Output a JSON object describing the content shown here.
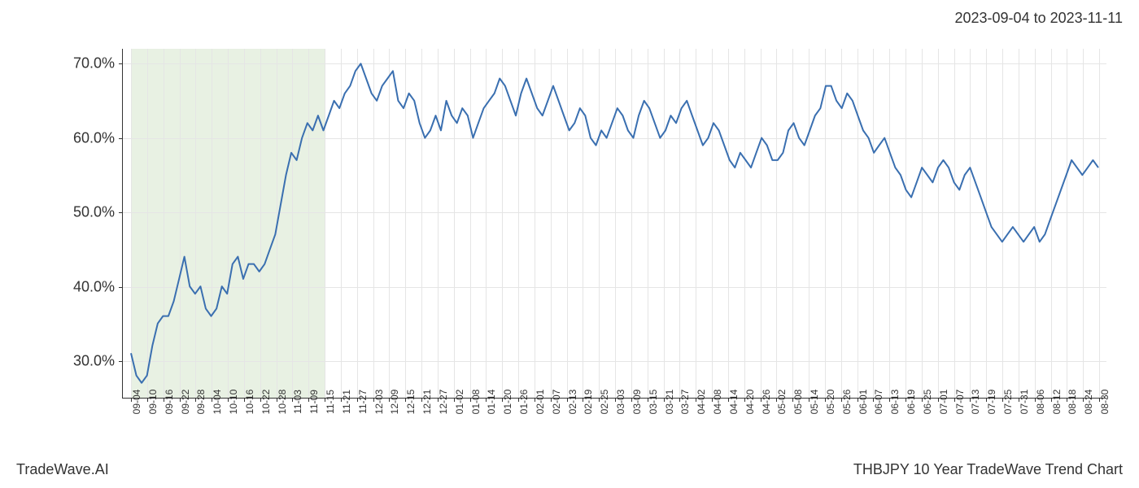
{
  "header": {
    "date_range": "2023-09-04 to 2023-11-11"
  },
  "footer": {
    "left": "TradeWave.AI",
    "right": "THBJPY 10 Year TradeWave Trend Chart"
  },
  "chart": {
    "type": "line",
    "background_color": "#ffffff",
    "grid_color": "#e5e5e5",
    "axis_color": "#333333",
    "line_color": "#3a6fb0",
    "line_width": 2,
    "highlight_band": {
      "color": "#d8e8d0",
      "opacity": 0.6,
      "x_start_label": "09-04",
      "x_end_label": "11-15"
    },
    "ylim": [
      25,
      72
    ],
    "yticks": [
      30.0,
      40.0,
      50.0,
      60.0,
      70.0
    ],
    "ytick_labels": [
      "30.0%",
      "40.0%",
      "50.0%",
      "60.0%",
      "70.0%"
    ],
    "ylabel_fontsize": 18,
    "xtick_labels": [
      "09-04",
      "09-10",
      "09-16",
      "09-22",
      "09-28",
      "10-04",
      "10-10",
      "10-16",
      "10-22",
      "10-28",
      "11-03",
      "11-09",
      "11-15",
      "11-21",
      "11-27",
      "12-03",
      "12-09",
      "12-15",
      "12-21",
      "12-27",
      "01-02",
      "01-08",
      "01-14",
      "01-20",
      "01-26",
      "02-01",
      "02-07",
      "02-13",
      "02-19",
      "02-25",
      "03-03",
      "03-09",
      "03-15",
      "03-21",
      "03-27",
      "04-02",
      "04-08",
      "04-14",
      "04-20",
      "04-26",
      "05-02",
      "05-08",
      "05-14",
      "05-20",
      "05-26",
      "06-01",
      "06-07",
      "06-13",
      "06-19",
      "06-25",
      "07-01",
      "07-07",
      "07-13",
      "07-19",
      "07-25",
      "07-31",
      "08-06",
      "08-12",
      "08-18",
      "08-24",
      "08-30"
    ],
    "xlabel_fontsize": 12,
    "series": {
      "name": "THBJPY",
      "values": [
        31,
        28,
        27,
        28,
        32,
        35,
        36,
        36,
        38,
        41,
        44,
        40,
        39,
        40,
        37,
        36,
        37,
        40,
        39,
        43,
        44,
        41,
        43,
        43,
        42,
        43,
        45,
        47,
        51,
        55,
        58,
        57,
        60,
        62,
        61,
        63,
        61,
        63,
        65,
        64,
        66,
        67,
        69,
        70,
        68,
        66,
        65,
        67,
        68,
        69,
        65,
        64,
        66,
        65,
        62,
        60,
        61,
        63,
        61,
        65,
        63,
        62,
        64,
        63,
        60,
        62,
        64,
        65,
        66,
        68,
        67,
        65,
        63,
        66,
        68,
        66,
        64,
        63,
        65,
        67,
        65,
        63,
        61,
        62,
        64,
        63,
        60,
        59,
        61,
        60,
        62,
        64,
        63,
        61,
        60,
        63,
        65,
        64,
        62,
        60,
        61,
        63,
        62,
        64,
        65,
        63,
        61,
        59,
        60,
        62,
        61,
        59,
        57,
        56,
        58,
        57,
        56,
        58,
        60,
        59,
        57,
        57,
        58,
        61,
        62,
        60,
        59,
        61,
        63,
        64,
        67,
        67,
        65,
        64,
        66,
        65,
        63,
        61,
        60,
        58,
        59,
        60,
        58,
        56,
        55,
        53,
        52,
        54,
        56,
        55,
        54,
        56,
        57,
        56,
        54,
        53,
        55,
        56,
        54,
        52,
        50,
        48,
        47,
        46,
        47,
        48,
        47,
        46,
        47,
        48,
        46,
        47,
        49,
        51,
        53,
        55,
        57,
        56,
        55,
        56,
        57,
        56
      ]
    }
  }
}
